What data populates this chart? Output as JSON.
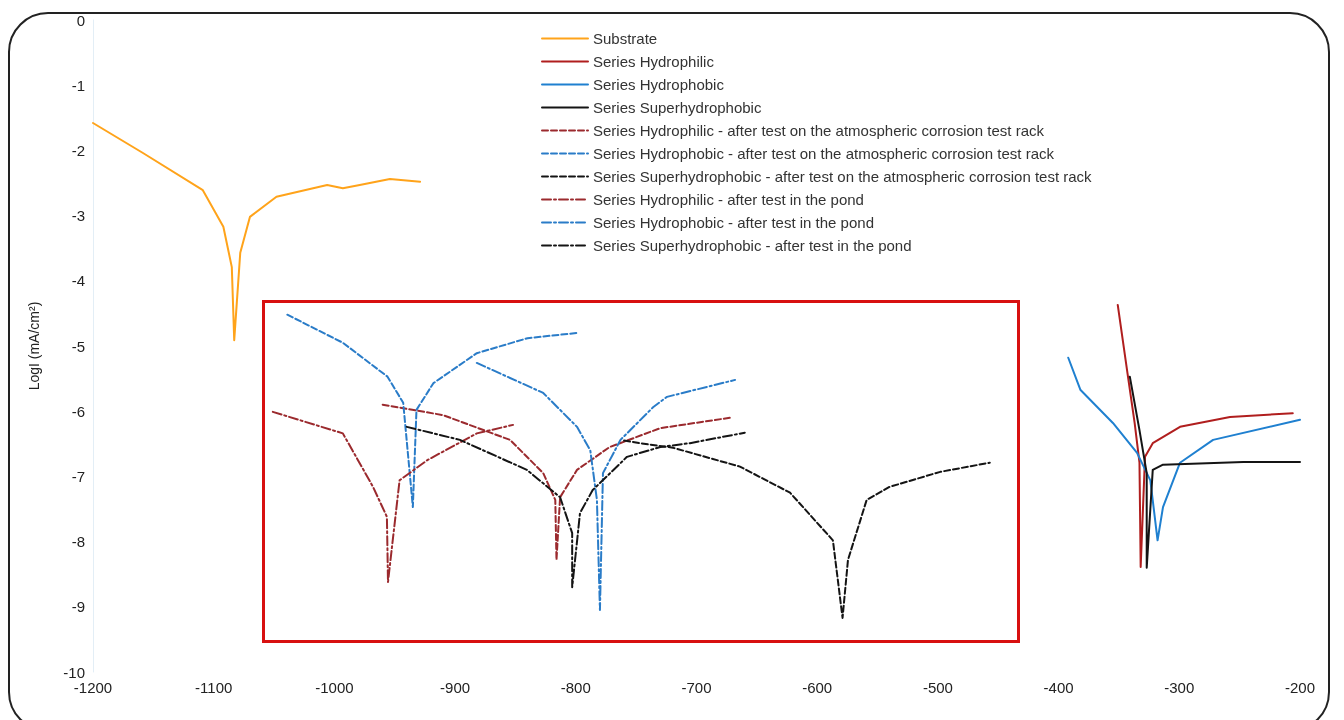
{
  "chart_data": {
    "type": "line",
    "ylabel": "LogI (mA/cm²)",
    "xlim": [
      -1200,
      -200
    ],
    "xticks": [
      -1200,
      -1100,
      -1000,
      -900,
      -800,
      -700,
      -600,
      -500,
      -400,
      -300,
      -200
    ],
    "ylim": [
      -10,
      0
    ],
    "yticks": [
      -10,
      -9,
      -8,
      -7,
      -6,
      -5,
      -4,
      -3,
      -2,
      -1,
      0
    ],
    "grid": false,
    "legend": "top",
    "marker": "none",
    "series": [
      {
        "name": "Substrate",
        "color": "#ffa31a",
        "line_style": "solid",
        "x": [
          -1200,
          -1158.6,
          -1109,
          -1092,
          -1085,
          -1083,
          -1078,
          -1070,
          -1048,
          -1006,
          -993,
          -979,
          -954,
          -929
        ],
        "values": [
          -1.58,
          -2.04,
          -2.61,
          -3.17,
          -3.79,
          -4.91,
          -3.57,
          -3.02,
          -2.71,
          -2.53,
          -2.58,
          -2.53,
          -2.44,
          -2.48
        ]
      },
      {
        "name": "Series Hydrophilic",
        "color": "#b01e1e",
        "line_style": "solid",
        "x": [
          -351,
          -343,
          -337,
          -333,
          -332,
          -328.4,
          -322,
          -299.4,
          -258,
          -206
        ],
        "values": [
          -4.37,
          -5.41,
          -6.18,
          -6.79,
          -8.39,
          -6.7,
          -6.49,
          -6.24,
          -6.09,
          -6.03
        ]
      },
      {
        "name": "Series Hydrophobic",
        "color": "#1f80d0",
        "line_style": "solid",
        "x": [
          -392,
          -382,
          -355,
          -335,
          -324,
          -318,
          -313.5,
          -299.4,
          -272,
          -200
        ],
        "values": [
          -5.18,
          -5.67,
          -6.18,
          -6.64,
          -7.06,
          -7.98,
          -7.47,
          -6.79,
          -6.44,
          -6.13
        ]
      },
      {
        "name": "Series Superhydrophobic",
        "color": "#141414",
        "line_style": "solid",
        "x": [
          -341,
          -333,
          -327,
          -327,
          -322,
          -313.5,
          -247,
          -200
        ],
        "values": [
          -5.47,
          -6.29,
          -6.95,
          -8.4,
          -6.9,
          -6.82,
          -6.78,
          -6.78
        ]
      },
      {
        "name": "Series Hydrophilic - after test on the atmospheric corrosion test rack",
        "color": "#9b2a2e",
        "line_style": "dashed",
        "x": [
          -960,
          -910,
          -854.5,
          -827,
          -817,
          -816,
          -813,
          -799,
          -772,
          -730,
          -672
        ],
        "values": [
          -5.9,
          -6.06,
          -6.44,
          -6.95,
          -7.36,
          -8.28,
          -7.32,
          -6.9,
          -6.55,
          -6.26,
          -6.1
        ]
      },
      {
        "name": "Series Hydrophobic - after test on the atmospheric corrosion test rack",
        "color": "#2a7cc8",
        "line_style": "dashed",
        "x": [
          -1039,
          -993,
          -956,
          -943,
          -935,
          -932,
          -918,
          -882,
          -840,
          -799
        ],
        "values": [
          -4.52,
          -4.95,
          -5.47,
          -5.87,
          -7.47,
          -5.98,
          -5.57,
          -5.11,
          -4.88,
          -4.8
        ]
      },
      {
        "name": "Series Superhydrophobic - after test on the atmospheric corrosion test rack",
        "color": "#141414",
        "line_style": "dashed",
        "x": [
          -760,
          -747,
          -719.5,
          -664,
          -622.5,
          -587,
          -579,
          -574.5,
          -559,
          -540,
          -498,
          -457
        ],
        "values": [
          -6.45,
          -6.49,
          -6.56,
          -6.85,
          -7.25,
          -7.98,
          -9.17,
          -8.28,
          -7.36,
          -7.16,
          -6.93,
          -6.79
        ]
      },
      {
        "name": "Series Hydrophilic - after test in the pond",
        "color": "#9b2a2e",
        "line_style": "dashdot",
        "x": [
          -1051,
          -993,
          -968,
          -956.5,
          -955.6,
          -946,
          -923,
          -882,
          -852
        ],
        "values": [
          -6.01,
          -6.34,
          -7.16,
          -7.62,
          -8.62,
          -7.06,
          -6.75,
          -6.34,
          -6.21
        ]
      },
      {
        "name": "Series Hydrophobic - after test in the pond",
        "color": "#2a7cc8",
        "line_style": "dashdot",
        "x": [
          -882,
          -827,
          -799,
          -788,
          -782.5,
          -780,
          -777.5,
          -763,
          -736,
          -724.5,
          -668
        ],
        "values": [
          -5.26,
          -5.72,
          -6.24,
          -6.6,
          -7.36,
          -9.05,
          -6.95,
          -6.44,
          -5.94,
          -5.78,
          -5.52
        ]
      },
      {
        "name": "Series Superhydrophobic - after test in the pond",
        "color": "#141414",
        "line_style": "dashdot",
        "x": [
          -940,
          -896,
          -840.5,
          -813,
          -803,
          -803,
          -796.5,
          -786,
          -757.6,
          -730,
          -705.4,
          -660
        ],
        "values": [
          -6.24,
          -6.44,
          -6.9,
          -7.32,
          -7.87,
          -8.7,
          -7.56,
          -7.21,
          -6.7,
          -6.55,
          -6.49,
          -6.33
        ]
      }
    ]
  }
}
